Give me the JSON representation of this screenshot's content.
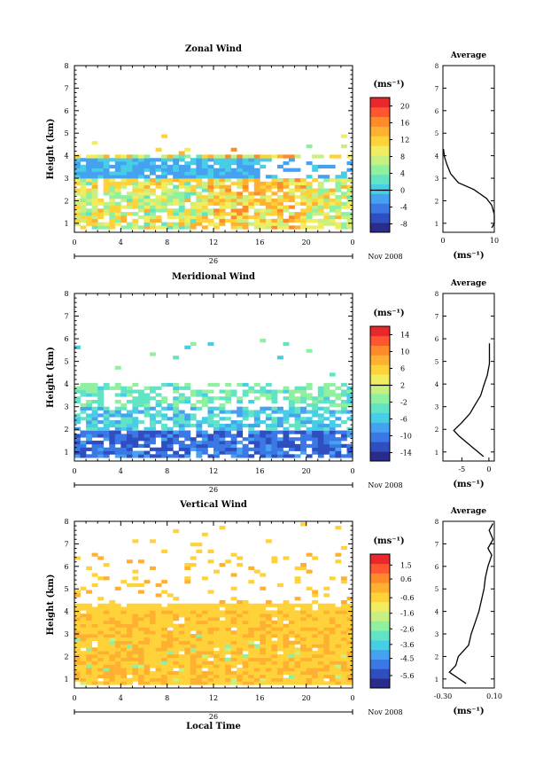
{
  "figure": {
    "xlabel": "Local Time",
    "date_label": "Nov 2008",
    "day_label": "26"
  },
  "colors": {
    "scale": [
      "#2a2c8a",
      "#2f4fc0",
      "#3b78e6",
      "#46a2f0",
      "#47cde6",
      "#62e3c4",
      "#8ff0a0",
      "#c8f080",
      "#f0ee60",
      "#ffd23a",
      "#ffb030",
      "#ff8a2a",
      "#ff5530",
      "#e8282a"
    ]
  },
  "chart_data": [
    {
      "type": "heatmap",
      "title": "Zonal Wind",
      "ylabel": "Height (km)",
      "xlim": [
        0,
        24
      ],
      "ylim": [
        0.6,
        8
      ],
      "xticks": [
        "0",
        "4",
        "8",
        "12",
        "16",
        "20",
        "0"
      ],
      "yticks": [
        "1",
        "2",
        "3",
        "4",
        "5",
        "6",
        "7",
        "8"
      ],
      "colorbar": {
        "unit": "(ms⁻¹)",
        "ticks": [
          "20",
          "16",
          "12",
          "8",
          "4",
          "0",
          "-4",
          "-8"
        ],
        "range": [
          -10,
          22
        ],
        "zero_line": 0
      },
      "average_panel": {
        "title": "Average",
        "xlabel": "(ms⁻¹)",
        "xlim": [
          0,
          10
        ],
        "xticks": [
          "0",
          "10"
        ],
        "profile": [
          [
            9.5,
            0.8
          ],
          [
            10,
            1.0
          ],
          [
            10,
            1.4
          ],
          [
            9.5,
            1.8
          ],
          [
            8.5,
            2.1
          ],
          [
            6,
            2.5
          ],
          [
            3,
            2.8
          ],
          [
            1.5,
            3.2
          ],
          [
            0.8,
            3.6
          ],
          [
            0.3,
            3.95
          ],
          [
            0.1,
            4.3
          ]
        ]
      }
    },
    {
      "type": "heatmap",
      "title": "Meridional Wind",
      "ylabel": "Height (km)",
      "xlim": [
        0,
        24
      ],
      "ylim": [
        0.6,
        8
      ],
      "xticks": [
        "0",
        "4",
        "8",
        "12",
        "16",
        "20",
        "0"
      ],
      "yticks": [
        "1",
        "2",
        "3",
        "4",
        "5",
        "6",
        "7",
        "8"
      ],
      "colorbar": {
        "unit": "(ms⁻¹)",
        "ticks": [
          "14",
          "10",
          "6",
          "2",
          "-2",
          "-6",
          "-10",
          "-14"
        ],
        "range": [
          -16,
          16
        ],
        "zero_line": 2
      },
      "average_panel": {
        "title": "Average",
        "xlabel": "(ms⁻¹)",
        "xlim": [
          -8.5,
          1
        ],
        "xticks": [
          "-5",
          "0"
        ],
        "profile": [
          [
            -1,
            0.8
          ],
          [
            -3,
            1.2
          ],
          [
            -5.5,
            1.7
          ],
          [
            -6.5,
            1.95
          ],
          [
            -5,
            2.3
          ],
          [
            -3.5,
            2.7
          ],
          [
            -2.5,
            3.1
          ],
          [
            -1.5,
            3.5
          ],
          [
            -1,
            3.9
          ],
          [
            -0.3,
            4.4
          ],
          [
            0.1,
            4.9
          ],
          [
            0.1,
            5.8
          ]
        ]
      }
    },
    {
      "type": "heatmap",
      "title": "Vertical Wind",
      "ylabel": "Height (km)",
      "xlim": [
        0,
        24
      ],
      "ylim": [
        0.6,
        8
      ],
      "xticks": [
        "0",
        "4",
        "8",
        "12",
        "16",
        "20",
        "0"
      ],
      "yticks": [
        "1",
        "2",
        "3",
        "4",
        "5",
        "6",
        "7",
        "8"
      ],
      "colorbar": {
        "unit": "(ms⁻¹)",
        "ticks": [
          "1.5",
          "0.6",
          "-0.6",
          "-1.6",
          "-2.6",
          "-3.6",
          "-4.5",
          "-5.6"
        ],
        "range": [
          -6.4,
          2.2
        ],
        "zero_line": null
      },
      "average_panel": {
        "title": "Average",
        "xlabel": "(ms⁻¹)",
        "xlim": [
          -0.3,
          0.1
        ],
        "xticks": [
          "-0.30",
          "0.10"
        ],
        "profile": [
          [
            -0.12,
            0.8
          ],
          [
            -0.25,
            1.3
          ],
          [
            -0.2,
            1.6
          ],
          [
            -0.18,
            2.0
          ],
          [
            -0.1,
            2.5
          ],
          [
            -0.08,
            3.0
          ],
          [
            -0.05,
            3.5
          ],
          [
            -0.02,
            4.0
          ],
          [
            0.0,
            4.5
          ],
          [
            0.02,
            5.0
          ],
          [
            0.03,
            5.5
          ],
          [
            0.05,
            6.0
          ],
          [
            0.08,
            6.5
          ],
          [
            0.05,
            6.8
          ],
          [
            0.09,
            7.2
          ],
          [
            0.06,
            7.6
          ],
          [
            0.09,
            7.9
          ]
        ]
      }
    }
  ]
}
